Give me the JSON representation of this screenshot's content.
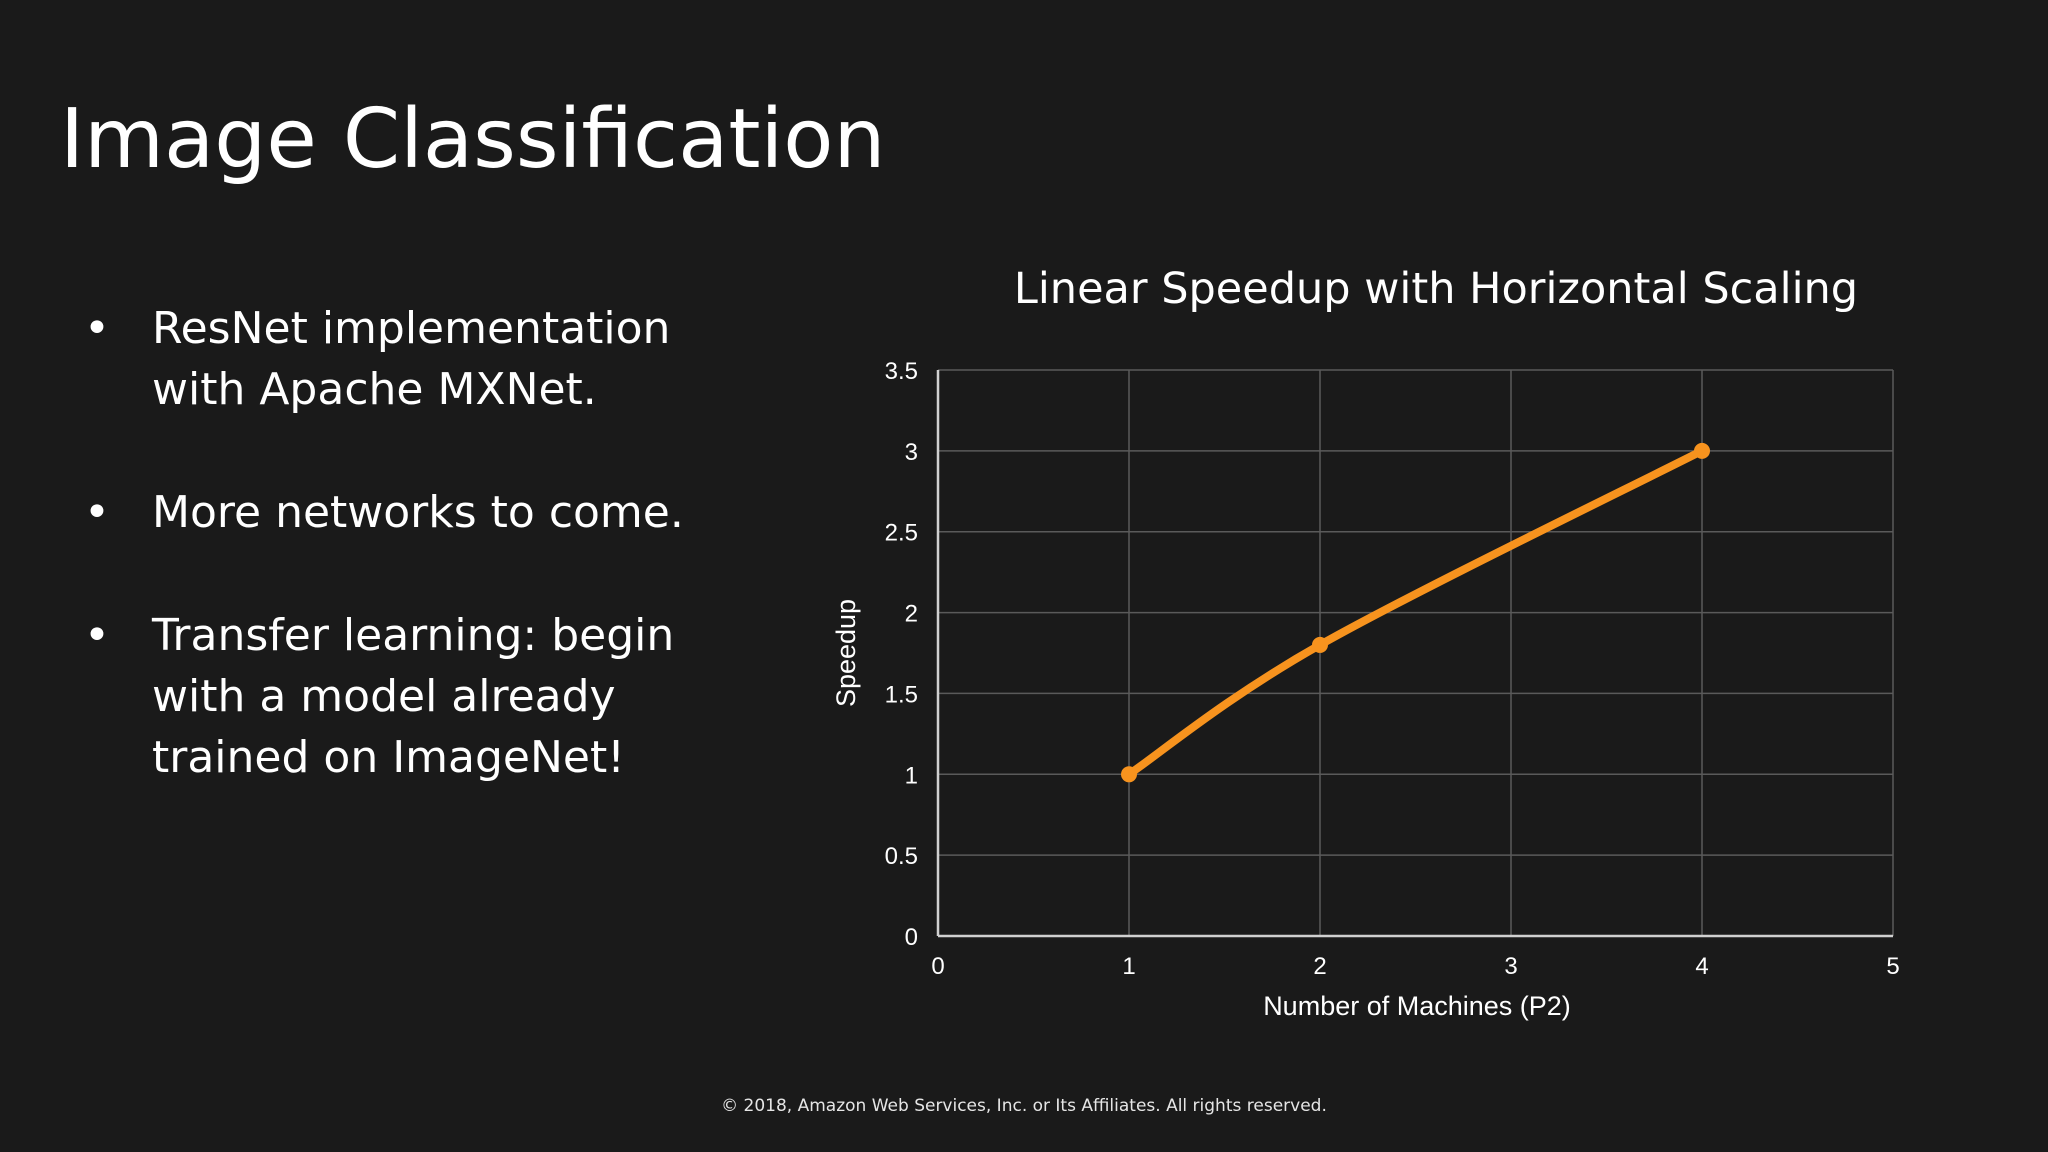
{
  "slide": {
    "title": "Image Classification",
    "bullets": [
      [
        "ResNet implementation",
        "with Apache MXNet."
      ],
      [
        "More networks to come."
      ],
      [
        "Transfer learning: begin",
        "with a model already",
        "trained on ImageNet!"
      ]
    ],
    "bullet_symbol": "•",
    "footer": "© 2018, Amazon Web Services, Inc. or Its Affiliates. All rights reserved."
  },
  "colors": {
    "background": "#1a1a1a",
    "line": "#f7931e",
    "grid": "#5a5a5a",
    "axis": "#d0d0d0",
    "text": "#ffffff"
  },
  "chart_data": {
    "type": "line",
    "title": "Linear Speedup with Horizontal Scaling",
    "xlabel": "Number of Machines (P2)",
    "ylabel": "Speedup",
    "x": [
      1,
      2,
      4
    ],
    "y": [
      1,
      1.8,
      3
    ],
    "xlim": [
      0,
      5
    ],
    "ylim": [
      0,
      3.5
    ],
    "xticks": [
      0,
      1,
      2,
      3,
      4,
      5
    ],
    "yticks": [
      0,
      0.5,
      1,
      1.5,
      2,
      2.5,
      3,
      3.5
    ],
    "grid": true,
    "legend": "none",
    "smooth": true
  }
}
